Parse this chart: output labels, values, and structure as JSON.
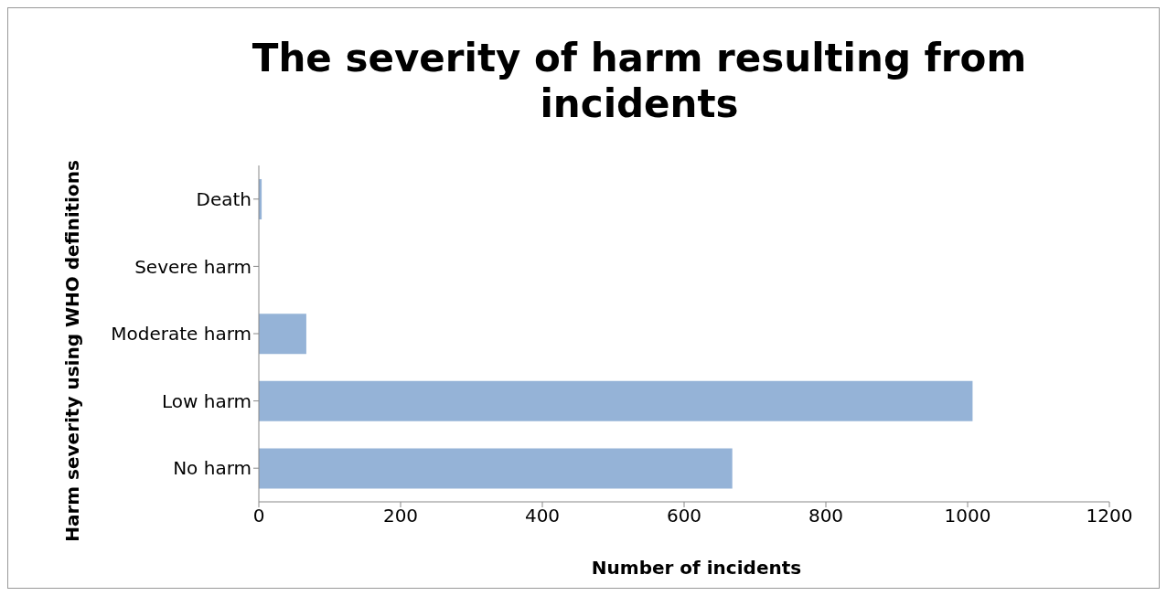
{
  "chart_data": {
    "type": "bar",
    "orientation": "horizontal",
    "title": "The severity of harm resulting from incidents",
    "xlabel": "Number of incidents",
    "ylabel": "Harm severity using WHO definitions",
    "categories": [
      "Death",
      "Severe harm",
      "Moderate harm",
      "Low harm",
      "No harm"
    ],
    "values": [
      4,
      0,
      67,
      1007,
      668
    ],
    "color": "#95b3d7",
    "xlim": [
      0,
      1200
    ],
    "xticks": [
      0,
      200,
      400,
      600,
      800,
      1000,
      1200
    ],
    "grid": false,
    "legend": false
  }
}
